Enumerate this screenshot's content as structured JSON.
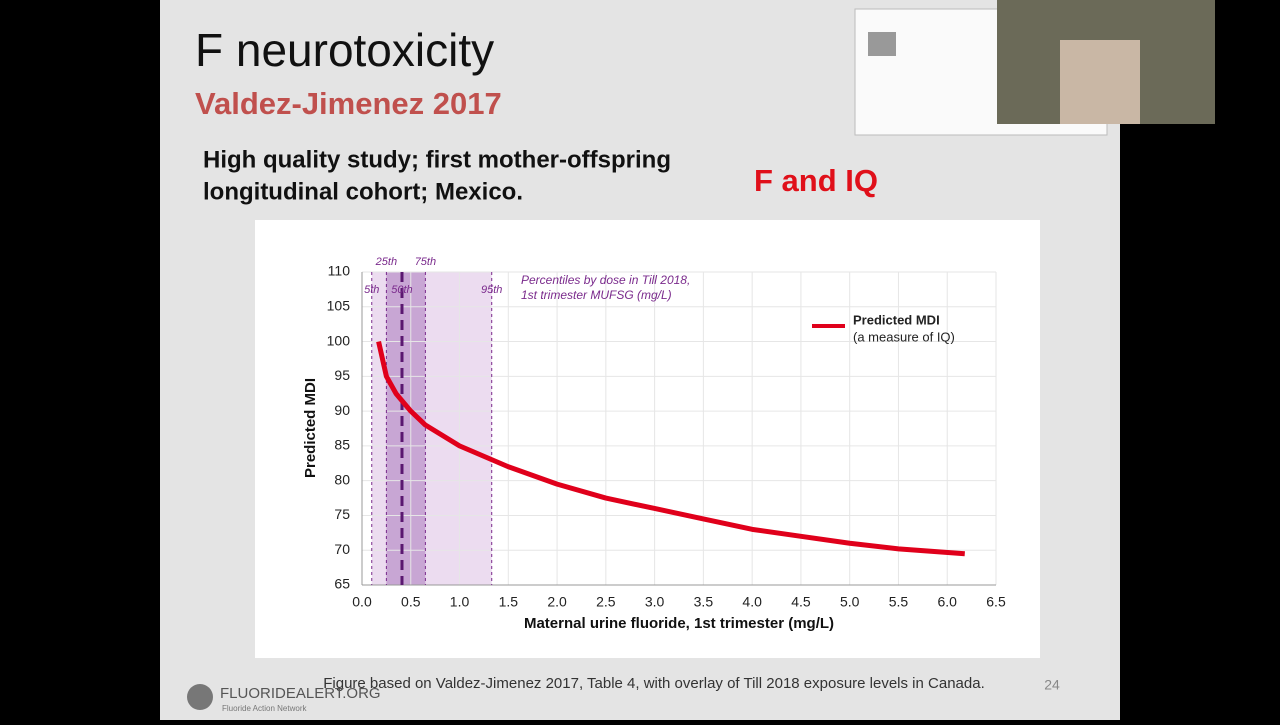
{
  "slide": {
    "title": "F neurotoxicity",
    "subtitle": "Valdez-Jimenez 2017",
    "text": [
      "High quality study; first mother-offspring",
      "longitudinal cohort; Mexico."
    ],
    "highlight": "F and IQ",
    "caption": "Figure based on Valdez-Jimenez 2017, Table 4, with overlay of Till 2018 exposure levels in Canada.",
    "page_number": "24",
    "logo": "FLUORIDEALERT.ORG",
    "logo_tagline": "Fluoride Action Network"
  },
  "chart_data": {
    "type": "line",
    "xlabel": "Maternal urine fluoride, 1st trimester (mg/L)",
    "ylabel": "Predicted MDI",
    "series": [
      {
        "name": "Predicted MDI",
        "note": "(a measure of IQ)",
        "color": "#e0001b",
        "x": [
          0.17,
          0.25,
          0.35,
          0.5,
          0.65,
          1.0,
          1.5,
          2.0,
          2.5,
          3.0,
          3.5,
          4.0,
          4.5,
          5.0,
          5.5,
          6.18
        ],
        "values": [
          100,
          95,
          92.5,
          90,
          88,
          85,
          82,
          79.5,
          77.5,
          76,
          74.5,
          73,
          72,
          71,
          70.2,
          69.5
        ]
      }
    ],
    "annotation": [
      "Percentiles by dose in Till 2018,",
      "1st trimester MUFSG (mg/L)"
    ],
    "percentiles": [
      {
        "label": "5th",
        "value": 0.1
      },
      {
        "label": "25th",
        "value": 0.25
      },
      {
        "label": "50th",
        "value": 0.41
      },
      {
        "label": "75th",
        "value": 0.65
      },
      {
        "label": "95th",
        "value": 1.33
      }
    ],
    "band_colors": [
      "#ecdcf0",
      "#c8a6d4"
    ],
    "percentile_color": "#7a2a8c",
    "xlim": [
      0,
      6.5
    ],
    "xticks": [
      {
        "value": 0,
        "label": "0.0"
      },
      0.5,
      {
        "value": 1,
        "label": "1.0"
      },
      1.5,
      {
        "value": 2,
        "label": "2.0"
      },
      2.5,
      {
        "value": 3,
        "label": "3.0"
      },
      3.5,
      {
        "value": 4,
        "label": "4.0"
      },
      4.5,
      {
        "value": 5,
        "label": "5.0"
      },
      5.5,
      {
        "value": 6,
        "label": "6.0"
      },
      6.5
    ],
    "ylim": [
      65,
      110
    ],
    "yticks": [
      65,
      70,
      75,
      80,
      85,
      90,
      95,
      100,
      105,
      110
    ],
    "grid": true,
    "legend": "upper right"
  }
}
